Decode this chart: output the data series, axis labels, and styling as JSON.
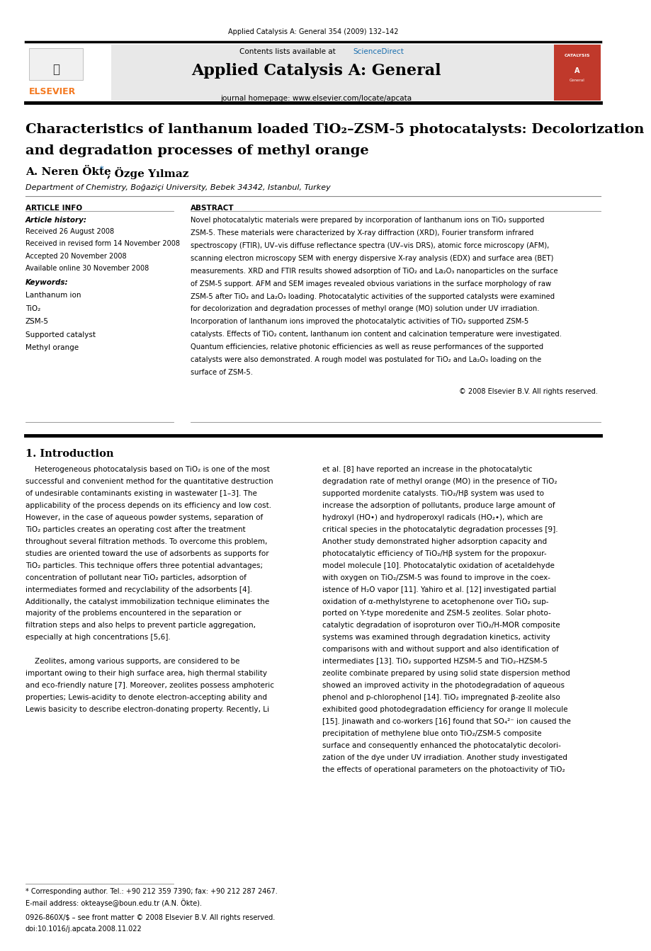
{
  "page_width": 9.92,
  "page_height": 13.23,
  "bg_color": "#ffffff",
  "header_journal_ref": "Applied Catalysis A: General 354 (2009) 132–142",
  "header_bg": "#e8e8e8",
  "header_contents_plain": "Contents lists available at ",
  "header_contents_link": "ScienceDirect",
  "header_sciencedirect_color": "#1a6faf",
  "header_journal_title": "Applied Catalysis A: General",
  "header_homepage": "journal homepage: www.elsevier.com/locate/apcata",
  "article_title_line1": "Characteristics of lanthanum loaded TiO₂–ZSM-5 photocatalysts: Decolorization",
  "article_title_line2": "and degradation processes of methyl orange",
  "author_name1": "A. Neren Ökte",
  "author_name2": ", Özge Yılmaz",
  "affiliation": "Department of Chemistry, Boğaziçi University, Bebek 34342, Istanbul, Turkey",
  "article_info_label": "ARTICLE INFO",
  "abstract_label": "ABSTRACT",
  "article_history_label": "Article history:",
  "received1": "Received 26 August 2008",
  "received2": "Received in revised form 14 November 2008",
  "accepted": "Accepted 20 November 2008",
  "available": "Available online 30 November 2008",
  "keywords_label": "Keywords:",
  "keywords": [
    "Lanthanum ion",
    "TiO₂",
    "ZSM-5",
    "Supported catalyst",
    "Methyl orange"
  ],
  "abstract_lines": [
    "Novel photocatalytic materials were prepared by incorporation of lanthanum ions on TiO₂ supported",
    "ZSM-5. These materials were characterized by X-ray diffraction (XRD), Fourier transform infrared",
    "spectroscopy (FTIR), UV–vis diffuse reflectance spectra (UV–vis DRS), atomic force microscopy (AFM),",
    "scanning electron microscopy SEM with energy dispersive X-ray analysis (EDX) and surface area (BET)",
    "measurements. XRD and FTIR results showed adsorption of TiO₂ and La₂O₃ nanoparticles on the surface",
    "of ZSM-5 support. AFM and SEM images revealed obvious variations in the surface morphology of raw",
    "ZSM-5 after TiO₂ and La₂O₃ loading. Photocatalytic activities of the supported catalysts were examined",
    "for decolorization and degradation processes of methyl orange (MO) solution under UV irradiation.",
    "Incorporation of lanthanum ions improved the photocatalytic activities of TiO₂ supported ZSM-5",
    "catalysts. Effects of TiO₂ content, lanthanum ion content and calcination temperature were investigated.",
    "Quantum efficiencies, relative photonic efficiencies as well as reuse performances of the supported",
    "catalysts were also demonstrated. A rough model was postulated for TiO₂ and La₂O₃ loading on the",
    "surface of ZSM-5."
  ],
  "copyright": "© 2008 Elsevier B.V. All rights reserved.",
  "intro_heading": "1. Introduction",
  "intro_col1_lines": [
    "    Heterogeneous photocatalysis based on TiO₂ is one of the most",
    "successful and convenient method for the quantitative destruction",
    "of undesirable contaminants existing in wastewater [1–3]. The",
    "applicability of the process depends on its efficiency and low cost.",
    "However, in the case of aqueous powder systems, separation of",
    "TiO₂ particles creates an operating cost after the treatment",
    "throughout several filtration methods. To overcome this problem,",
    "studies are oriented toward the use of adsorbents as supports for",
    "TiO₂ particles. This technique offers three potential advantages;",
    "concentration of pollutant near TiO₂ particles, adsorption of",
    "intermediates formed and recyclability of the adsorbents [4].",
    "Additionally, the catalyst immobilization technique eliminates the",
    "majority of the problems encountered in the separation or",
    "filtration steps and also helps to prevent particle aggregation,",
    "especially at high concentrations [5,6].",
    "",
    "    Zeolites, among various supports, are considered to be",
    "important owing to their high surface area, high thermal stability",
    "and eco-friendly nature [7]. Moreover, zeolites possess amphoteric",
    "properties; Lewis-acidity to denote electron-accepting ability and",
    "Lewis basicity to describe electron-donating property. Recently, Li"
  ],
  "intro_col2_lines": [
    "et al. [8] have reported an increase in the photocatalytic",
    "degradation rate of methyl orange (MO) in the presence of TiO₂",
    "supported mordenite catalysts. TiO₂/Hβ system was used to",
    "increase the adsorption of pollutants, produce large amount of",
    "hydroxyl (HO•) and hydroperoxyl radicals (HO₂•), which are",
    "critical species in the photocatalytic degradation processes [9].",
    "Another study demonstrated higher adsorption capacity and",
    "photocatalytic efficiency of TiO₂/Hβ system for the propoxur-",
    "model molecule [10]. Photocatalytic oxidation of acetaldehyde",
    "with oxygen on TiO₂/ZSM-5 was found to improve in the coex-",
    "istence of H₂O vapor [11]. Yahiro et al. [12] investigated partial",
    "oxidation of α-methylstyrene to acetophenone over TiO₂ sup-",
    "ported on Y-type moredenite and ZSM-5 zeolites. Solar photo-",
    "catalytic degradation of isoproturon over TiO₂/H-MOR composite",
    "systems was examined through degradation kinetics, activity",
    "comparisons with and without support and also identification of",
    "intermediates [13]. TiO₂ supported HZSM-5 and TiO₂-HZSM-5",
    "zeolite combinate prepared by using solid state dispersion method",
    "showed an improved activity in the photodegradation of aqueous",
    "phenol and p-chlorophenol [14]. TiO₂ impregnated β-zeolite also",
    "exhibited good photodegradation efficiency for orange II molecule",
    "[15]. Jinawath and co-workers [16] found that SO₄²⁻ ion caused the",
    "precipitation of methylene blue onto TiO₂/ZSM-5 composite",
    "surface and consequently enhanced the photocatalytic decolori-",
    "zation of the dye under UV irradiation. Another study investigated",
    "the effects of operational parameters on the photoactivity of TiO₂"
  ],
  "footnote_star": "* Corresponding author. Tel.: +90 212 359 7390; fax: +90 212 287 2467.",
  "footnote_email": "E-mail address: okteayse@boun.edu.tr (A.N. Ökte).",
  "issn": "0926-860X/$ – see front matter © 2008 Elsevier B.V. All rights reserved.",
  "doi": "doi:10.1016/j.apcata.2008.11.022",
  "elsevier_color": "#f47920",
  "top_bar_color": "#000000"
}
